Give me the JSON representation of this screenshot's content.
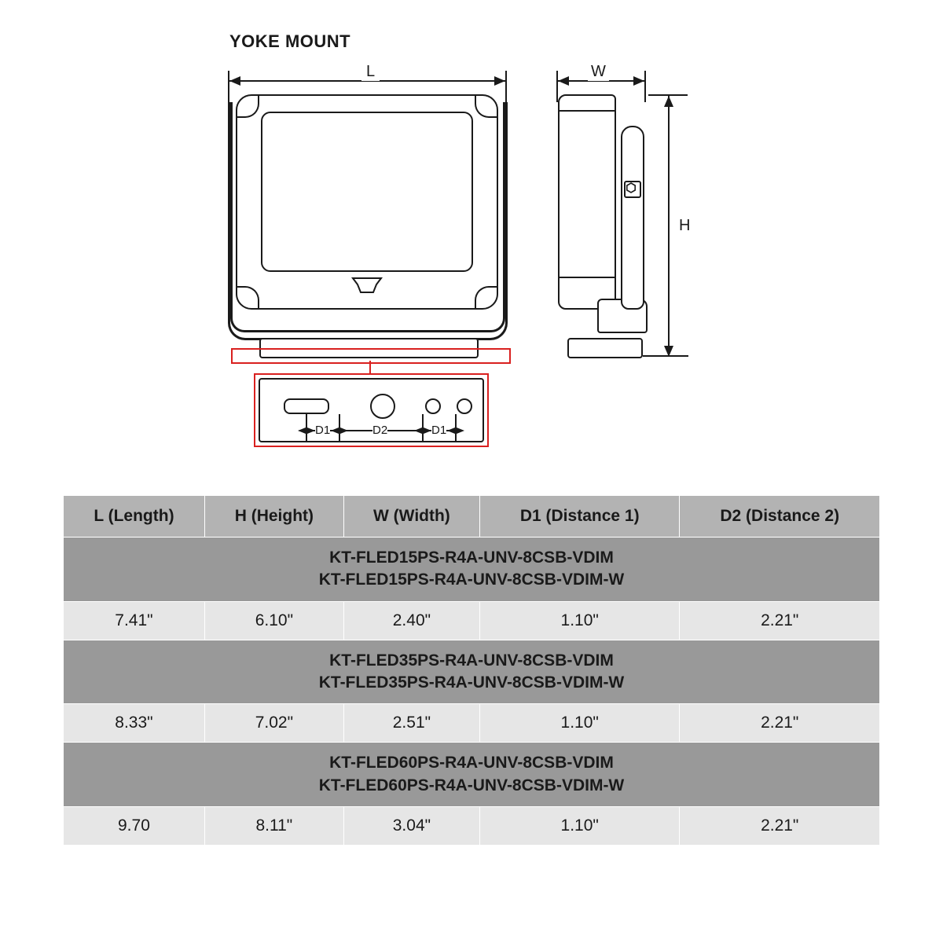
{
  "title": "YOKE MOUNT",
  "dims": {
    "L": "L",
    "H": "H",
    "W": "W",
    "D1": "D1",
    "D2": "D2"
  },
  "table": {
    "headers": [
      "L (Length)",
      "H (Height)",
      "W (Width)",
      "D1 (Distance 1)",
      "D2 (Distance 2)"
    ],
    "groups": [
      {
        "model_a": "KT-FLED15PS-R4A-UNV-8CSB-VDIM",
        "model_b": "KT-FLED15PS-R4A-UNV-8CSB-VDIM-W",
        "values": [
          "7.41\"",
          "6.10\"",
          "2.40\"",
          "1.10\"",
          "2.21\""
        ]
      },
      {
        "model_a": "KT-FLED35PS-R4A-UNV-8CSB-VDIM",
        "model_b": "KT-FLED35PS-R4A-UNV-8CSB-VDIM-W",
        "values": [
          "8.33\"",
          "7.02\"",
          "2.51\"",
          "1.10\"",
          "2.21\""
        ]
      },
      {
        "model_a": "KT-FLED60PS-R4A-UNV-8CSB-VDIM",
        "model_b": "KT-FLED60PS-R4A-UNV-8CSB-VDIM-W",
        "values": [
          "9.70",
          "8.11\"",
          "3.04\"",
          "1.10\"",
          "2.21\""
        ]
      }
    ]
  },
  "colors": {
    "ink": "#1a1a1a",
    "red": "#d9201f",
    "th_bg": "#b3b3b3",
    "model_bg": "#999999",
    "val_bg": "#e6e6e6"
  }
}
